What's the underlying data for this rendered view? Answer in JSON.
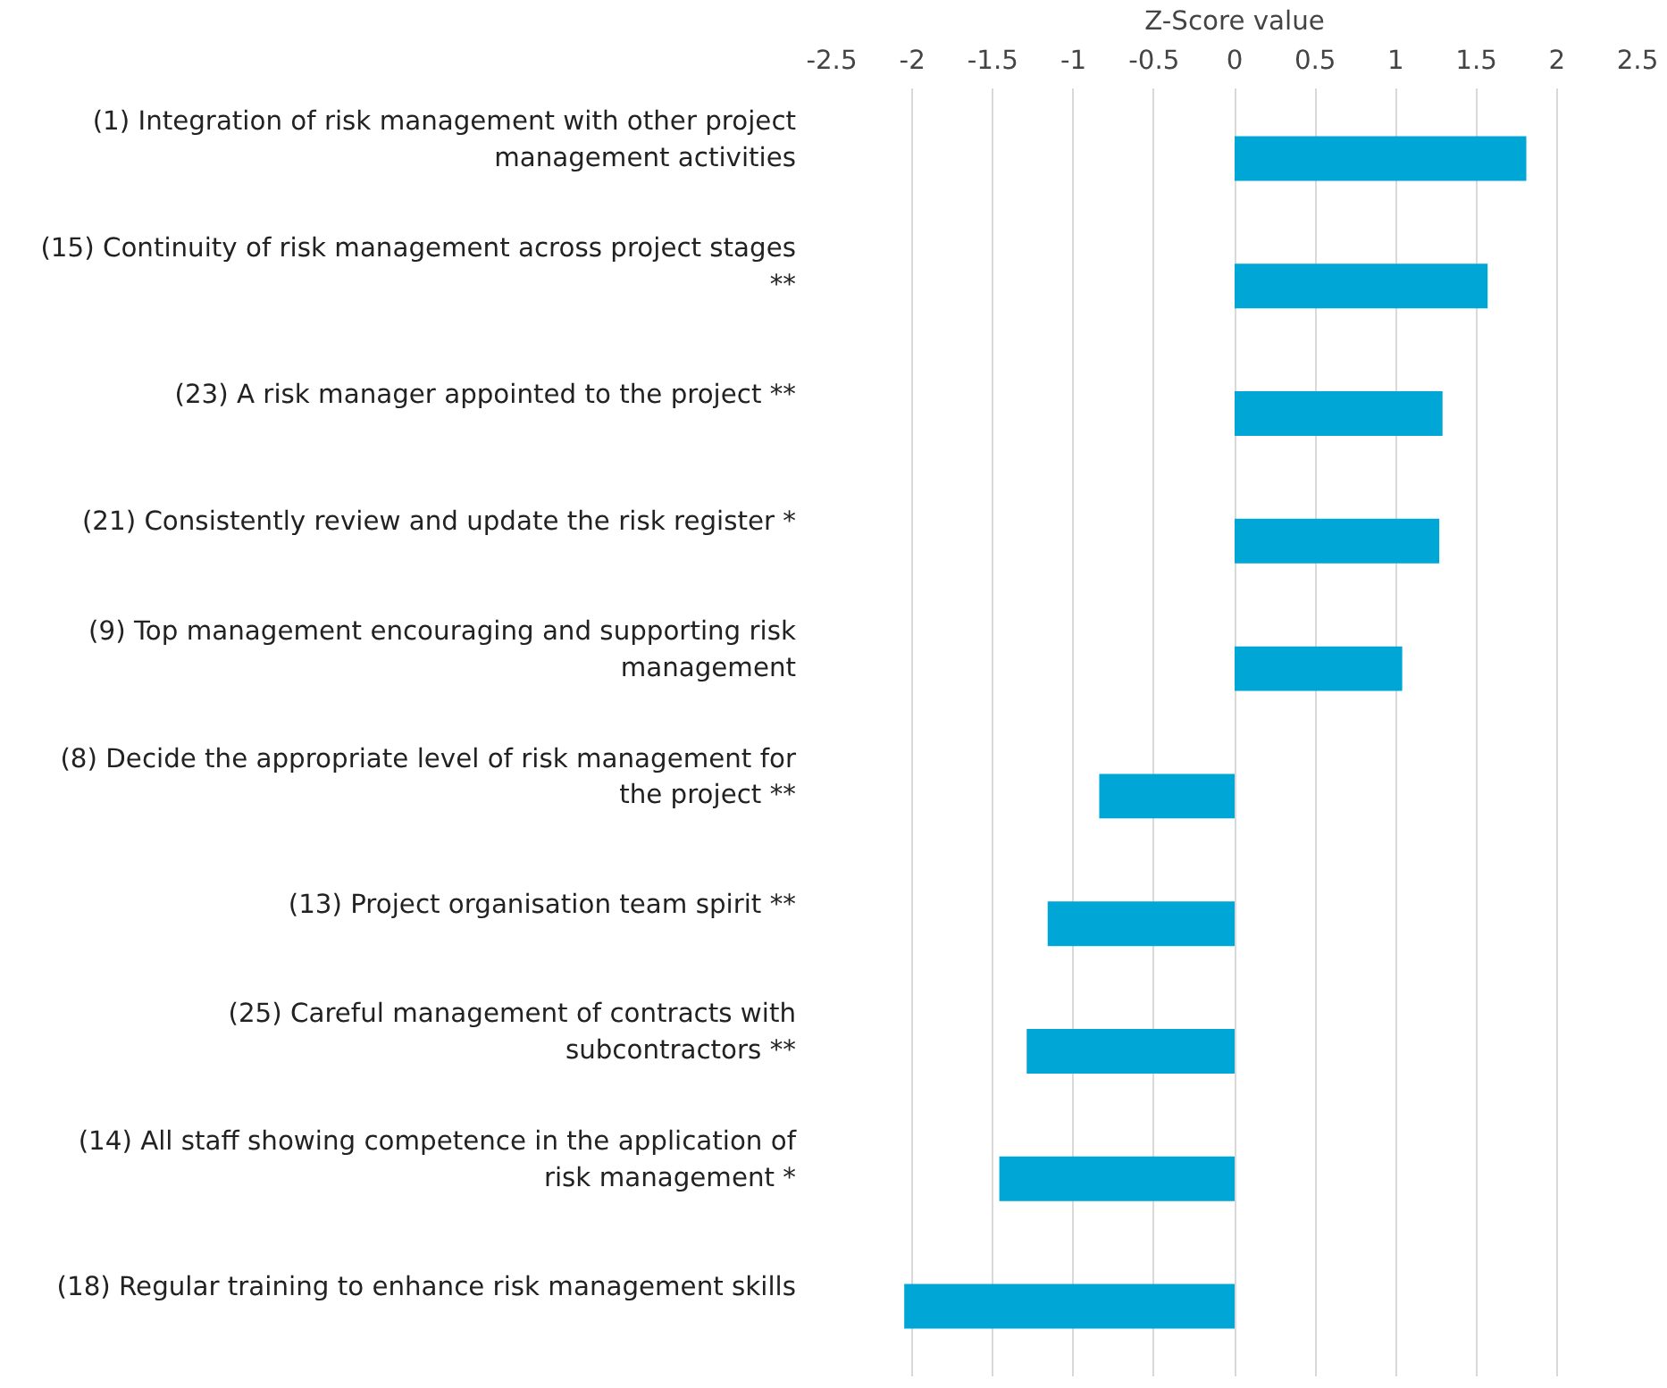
{
  "chart_data": {
    "type": "bar",
    "orientation": "horizontal",
    "xlabel": "Z-Score value",
    "categories": [
      "(1) Integration of risk management with other project\nmanagement activities",
      "(15) Continuity of risk management across project stages\n**",
      "(23) A risk manager appointed to the project **",
      "(21) Consistently review and update the risk register *",
      "(9) Top management encouraging and supporting risk\nmanagement",
      "(8) Decide the appropriate level of risk management for\nthe project **",
      "(13) Project organisation team spirit **",
      "(25) Careful management of contracts with\nsubcontractors **",
      "(14) All staff showing competence in the application of\nrisk management *",
      "(18) Regular training to enhance risk management skills"
    ],
    "values": [
      1.81,
      1.57,
      1.29,
      1.27,
      1.04,
      -0.84,
      -1.16,
      -1.29,
      -1.46,
      -2.05
    ],
    "color": "#00a6d6",
    "xlim": [
      -2.5,
      2.5
    ],
    "xticks": [
      -2.5,
      -2,
      -1.5,
      -1,
      -0.5,
      0,
      0.5,
      1,
      1.5,
      2,
      2.5
    ],
    "grid": "x"
  }
}
